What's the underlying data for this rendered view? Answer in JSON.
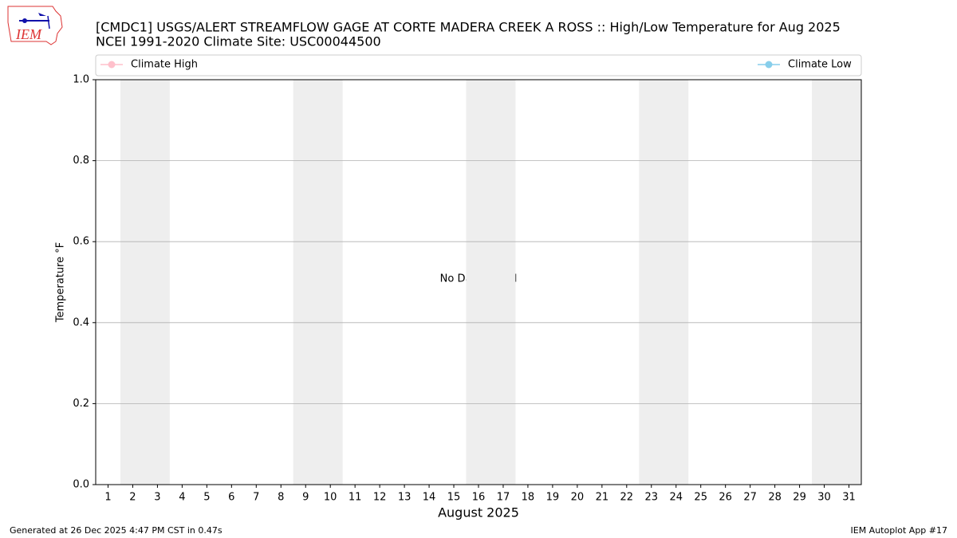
{
  "chart_data": {
    "type": "line",
    "title": "[CMDC1] USGS/ALERT STREAMFLOW GAGE  AT CORTE MADERA CREEK A ROSS :: High/Low Temperature for Aug 2025",
    "subtitle": "NCEI 1991-2020 Climate Site: USC00044500",
    "ylabel": "Temperature °F",
    "xlabel": "August 2025",
    "annotation": "No Data Found",
    "x": [
      1,
      2,
      3,
      4,
      5,
      6,
      7,
      8,
      9,
      10,
      11,
      12,
      13,
      14,
      15,
      16,
      17,
      18,
      19,
      20,
      21,
      22,
      23,
      24,
      25,
      26,
      27,
      28,
      29,
      30,
      31
    ],
    "xlim": [
      0.5,
      31.5
    ],
    "xticks": [
      1,
      2,
      3,
      4,
      5,
      6,
      7,
      8,
      9,
      10,
      11,
      12,
      13,
      14,
      15,
      16,
      17,
      18,
      19,
      20,
      21,
      22,
      23,
      24,
      25,
      26,
      27,
      28,
      29,
      30,
      31
    ],
    "series": [
      {
        "name": "Climate High",
        "color": "#ffc0cb",
        "values": [
          null,
          null,
          null,
          null,
          null,
          null,
          null,
          null,
          null,
          null,
          null,
          null,
          null,
          null,
          null,
          null,
          null,
          null,
          null,
          null,
          null,
          null,
          null,
          null,
          null,
          null,
          null,
          null,
          null,
          null,
          null
        ]
      },
      {
        "name": "Climate Low",
        "color": "#87ceeb",
        "values": [
          null,
          null,
          null,
          null,
          null,
          null,
          null,
          null,
          null,
          null,
          null,
          null,
          null,
          null,
          null,
          null,
          null,
          null,
          null,
          null,
          null,
          null,
          null,
          null,
          null,
          null,
          null,
          null,
          null,
          null,
          null
        ]
      }
    ],
    "ylim": [
      0,
      1
    ],
    "yticks": [
      {
        "value": 0,
        "label": "0.0"
      },
      {
        "value": 0.2,
        "label": "0.2"
      },
      {
        "value": 0.4,
        "label": "0.4"
      },
      {
        "value": 0.6,
        "label": "0.6"
      },
      {
        "value": 0.8,
        "label": "0.8"
      },
      {
        "value": 1,
        "label": "1.0"
      }
    ],
    "grid": true,
    "weekend_bands": [
      [
        2,
        3
      ],
      [
        9,
        10
      ],
      [
        16,
        17
      ],
      [
        23,
        24
      ],
      [
        30,
        31
      ]
    ],
    "weekend_color": "#eeeeee"
  },
  "logo_text": "IEM",
  "footer_left": "Generated at 26 Dec 2025 4:47 PM CST in 0.47s",
  "footer_right": "IEM Autoplot App #17"
}
